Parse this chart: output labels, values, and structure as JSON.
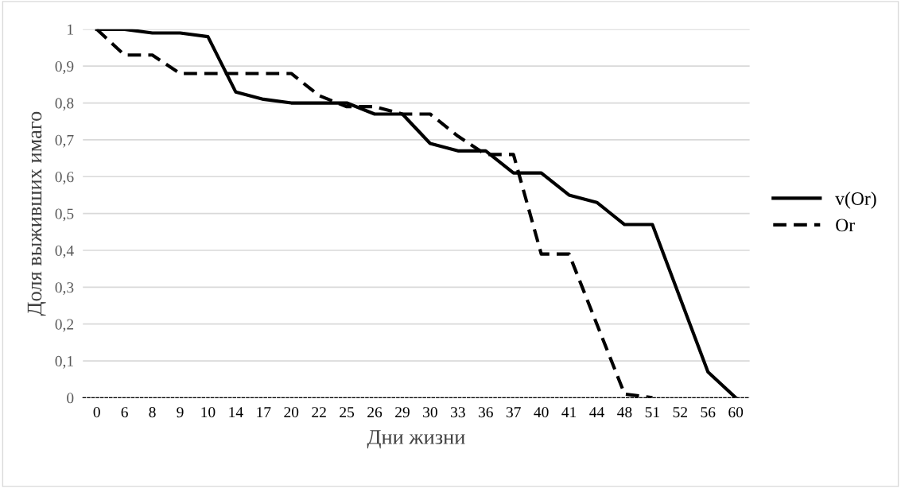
{
  "chart_data": {
    "type": "line",
    "xlabel": "Дни жизни",
    "ylabel": "Доля выживших имаго",
    "categories": [
      "0",
      "6",
      "8",
      "9",
      "10",
      "14",
      "17",
      "20",
      "22",
      "25",
      "26",
      "29",
      "30",
      "33",
      "36",
      "37",
      "40",
      "41",
      "44",
      "48",
      "51",
      "52",
      "56",
      "60"
    ],
    "series": [
      {
        "name": "v(Or)",
        "color": "#000000",
        "line_style": "solid",
        "values": [
          1,
          1,
          0.99,
          0.99,
          0.98,
          0.83,
          0.81,
          0.8,
          0.8,
          0.8,
          0.77,
          0.77,
          0.69,
          0.67,
          0.67,
          0.61,
          0.61,
          0.55,
          0.53,
          0.47,
          0.47,
          0.27,
          0.07,
          0
        ]
      },
      {
        "name": "Or",
        "color": "#000000",
        "line_style": "dashed",
        "values": [
          1,
          0.93,
          0.93,
          0.88,
          0.88,
          0.88,
          0.88,
          0.88,
          0.82,
          0.79,
          0.79,
          0.77,
          0.77,
          0.71,
          0.66,
          0.66,
          0.39,
          0.39,
          0.2,
          0.01,
          0,
          null,
          null,
          null
        ]
      }
    ],
    "ylim": [
      0,
      1
    ],
    "yticks": [
      0,
      {
        "value": 0.1,
        "label": "0,1"
      },
      {
        "value": 0.2,
        "label": "0,2"
      },
      {
        "value": 0.3,
        "label": "0,3"
      },
      {
        "value": 0.4,
        "label": "0,4"
      },
      {
        "value": 0.5,
        "label": "0,5"
      },
      {
        "value": 0.6,
        "label": "0,6"
      },
      {
        "value": 0.7,
        "label": "0,7"
      },
      {
        "value": 0.8,
        "label": "0,8"
      },
      {
        "value": 0.9,
        "label": "0,9"
      },
      1
    ],
    "grid": "y",
    "legend": "right",
    "marker": "none"
  }
}
